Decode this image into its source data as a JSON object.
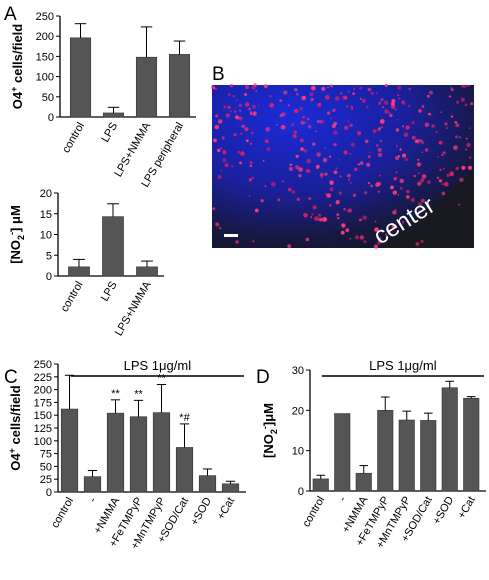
{
  "figure": {
    "panels": {
      "A": "A",
      "B": "B",
      "C": "C",
      "D": "D"
    },
    "micrograph": {
      "label": "center",
      "colors": {
        "nuclei": "#2233ff",
        "cells": "#ff3366",
        "tissue": "#1a1a3a"
      }
    }
  },
  "chart_data": [
    {
      "id": "A-top",
      "type": "bar",
      "categories": [
        "control",
        "LPS",
        "LPS+NMMA",
        "LPS peripheral"
      ],
      "values": [
        196,
        10,
        148,
        155
      ],
      "errors": [
        35,
        14,
        75,
        33
      ],
      "ylabel_main": "O4",
      "ylabel_sup": "+",
      "ylabel_rest": " cells/field",
      "ylim": [
        0,
        250
      ],
      "yticks": [
        0,
        50,
        100,
        150,
        200,
        250
      ],
      "bar_color": "#555555",
      "grid": false
    },
    {
      "id": "A-bottom",
      "type": "bar",
      "categories": [
        "control",
        "LPS",
        "LPS+NMMA"
      ],
      "values": [
        2.2,
        14.3,
        2.2
      ],
      "errors": [
        1.8,
        3.1,
        1.4
      ],
      "ylabel_pre": "[NO",
      "ylabel_sub": "2",
      "ylabel_sup": "-",
      "ylabel_rest": "] μM",
      "ylim": [
        0,
        20
      ],
      "yticks": [
        0,
        5,
        10,
        15,
        20
      ],
      "bar_color": "#555555",
      "grid": false
    },
    {
      "id": "C",
      "type": "bar",
      "categories": [
        "control",
        "-",
        "+NMMA",
        "+FeTMPyP",
        "+MnTMPyP",
        "+SOD/Cat",
        "+SOD",
        "+Cat"
      ],
      "values": [
        162,
        30,
        154,
        147,
        155,
        87,
        32,
        16
      ],
      "errors": [
        66,
        12,
        26,
        32,
        55,
        46,
        13,
        5
      ],
      "annotations": [
        "",
        "",
        "**",
        "**",
        "**",
        "*#",
        "",
        ""
      ],
      "treatment_label": "LPS 1μg/ml",
      "ylabel_main": "O4",
      "ylabel_sup": "+",
      "ylabel_rest": " cells/field",
      "ylim": [
        0,
        250
      ],
      "yticks": [
        0,
        25,
        50,
        75,
        100,
        125,
        150,
        175,
        200,
        225,
        250
      ],
      "bar_color": "#555555",
      "grid": false
    },
    {
      "id": "D",
      "type": "bar",
      "categories": [
        "control",
        "-",
        "+NMMA",
        "+FeTMPyP",
        "+MnTMPyP",
        "+SOD/Cat",
        "+SOD",
        "+Cat"
      ],
      "values": [
        3.0,
        19.2,
        4.4,
        20.0,
        17.6,
        17.5,
        25.6,
        23.0
      ],
      "errors": [
        0.9,
        0.0,
        1.9,
        3.3,
        2.2,
        1.8,
        1.6,
        0.4
      ],
      "annotations": [
        "",
        "",
        "",
        "",
        "",
        "",
        "",
        ""
      ],
      "treatment_label": "LPS 1μg/ml",
      "ylabel_pre": "[NO",
      "ylabel_sub": "2",
      "ylabel_sup": "-",
      "ylabel_rest": "]μM",
      "ylim": [
        0,
        30
      ],
      "yticks": [
        0,
        10,
        20,
        30
      ],
      "bar_color": "#555555",
      "grid": false
    }
  ]
}
